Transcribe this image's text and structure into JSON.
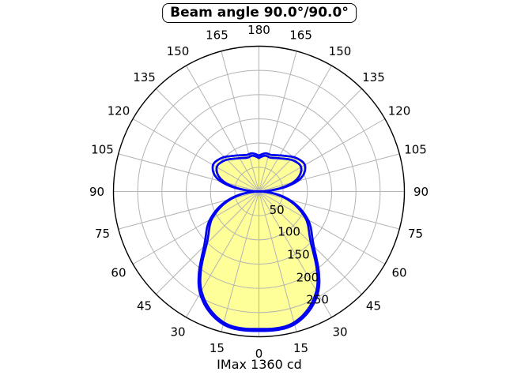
{
  "title": {
    "text": "Beam angle 90.0°/90.0°"
  },
  "footer": {
    "imax_label": "IMax 1360 cd"
  },
  "chart_data": {
    "type": "line",
    "variant": "polar-intensity-distribution",
    "title": "Beam angle 90.0°/90.0°",
    "caption": "IMax 1360 cd",
    "imax_cd": 1360,
    "beam_angle_deg": [
      90.0,
      90.0
    ],
    "angle_zero": "bottom",
    "angle_labels_mirrored": true,
    "angle_ticks_deg": [
      0,
      15,
      30,
      45,
      60,
      75,
      90,
      105,
      120,
      135,
      150,
      165,
      180
    ],
    "r_ticks": [
      50,
      100,
      150,
      200,
      250
    ],
    "r_max": 300,
    "grid": true,
    "angles_deg": [
      0,
      15,
      30,
      45,
      60,
      75,
      88,
      90,
      92,
      105,
      118,
      130,
      145,
      160,
      170,
      180
    ],
    "series": [
      {
        "name": "curve-outer",
        "values": [
          288,
          284,
          243,
          160,
          117,
          64,
          8,
          1,
          8,
          82,
          108,
          105,
          90,
          80,
          80,
          74
        ]
      },
      {
        "name": "curve-inner",
        "values": [
          284,
          280,
          237,
          152,
          111,
          59,
          6,
          1,
          6,
          73,
          99,
          97,
          83,
          74,
          75,
          69
        ]
      }
    ],
    "colors": {
      "curve": "#0202f2",
      "fill": "#ffff99",
      "grid": "#b3b3b3",
      "outer_ring": "#000000",
      "text": "#000000",
      "background": "#ffffff"
    }
  }
}
